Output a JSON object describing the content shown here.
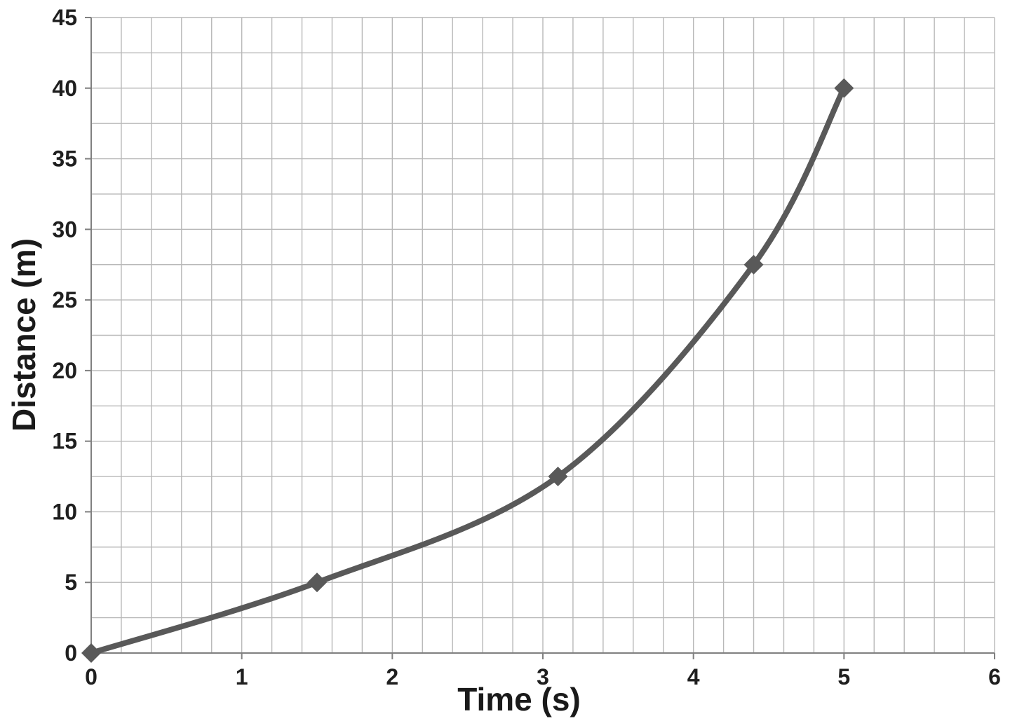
{
  "chart_data": {
    "type": "line",
    "title": "",
    "xlabel": "Time (s)",
    "ylabel": "Distance (m)",
    "x": [
      0,
      1.5,
      3.1,
      4.4,
      5
    ],
    "y": [
      0,
      5,
      12.5,
      27.5,
      40
    ],
    "xlim": [
      0,
      6
    ],
    "ylim": [
      0,
      45
    ],
    "x_major_ticks": [
      0,
      1,
      2,
      3,
      4,
      5,
      6
    ],
    "y_major_ticks": [
      0,
      5,
      10,
      15,
      20,
      25,
      30,
      35,
      40,
      45
    ],
    "x_minor_step": 0.2,
    "y_minor_step": 2.5,
    "grid": true,
    "legend": "none",
    "marker": "diamond",
    "colors": {
      "line": "#595959",
      "marker": "#595959",
      "grid": "#b8b8b8",
      "axis": "#808080",
      "tick_label": "#1f1f1f",
      "background": "#ffffff"
    }
  }
}
